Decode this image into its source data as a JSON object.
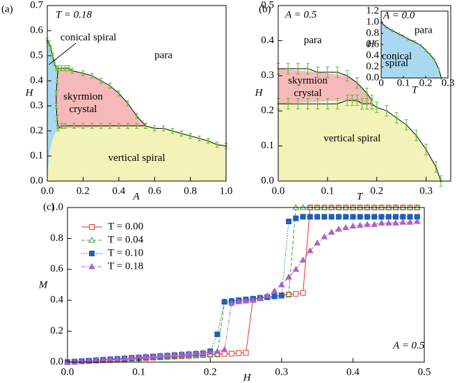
{
  "chart_data": [
    {
      "type": "phase",
      "panel": "(a)",
      "annotation": "T = 0.18",
      "xlabel": "A",
      "ylabel": "H",
      "xlim": [
        0,
        1
      ],
      "ylim": [
        0,
        0.7
      ],
      "xticks": [
        {
          "value": 0,
          "label": "0.0"
        },
        0.2,
        0.4,
        0.6,
        0.8,
        {
          "value": 1,
          "label": "1.0"
        }
      ],
      "yticks": [
        {
          "value": 0,
          "label": "0.0"
        },
        0.1,
        0.2,
        0.3,
        0.4,
        0.5,
        0.6,
        0.7
      ],
      "regions": [
        {
          "label": [
            "vertical spiral"
          ],
          "color": "#f3f2b8",
          "x": [
            0,
            0.01,
            0.02,
            0.03,
            0.05,
            0.06,
            0.55,
            0.6,
            0.7,
            0.8,
            0.9,
            1,
            1,
            0
          ],
          "y": [
            0,
            0.1,
            0.14,
            0.17,
            0.2,
            0.21,
            0.22,
            0.21,
            0.2,
            0.18,
            0.16,
            0.14,
            0,
            0
          ]
        },
        {
          "label": [
            "skyrmion",
            "crystal"
          ],
          "color": "#f6b9b9",
          "x": [
            0.06,
            0.055,
            0.05,
            0.05,
            0.055,
            0.06,
            0.1,
            0.2,
            0.3,
            0.4,
            0.5,
            0.55
          ],
          "y": [
            0.21,
            0.25,
            0.3,
            0.35,
            0.4,
            0.45,
            0.45,
            0.43,
            0.4,
            0.35,
            0.26,
            0.22
          ]
        },
        {
          "label": [
            "conical spiral"
          ],
          "color": "#a9d9f1",
          "x": [
            0,
            0.01,
            0.02,
            0.03,
            0.04,
            0.05,
            0.06,
            0.055,
            0.05,
            0.05,
            0.055,
            0.06,
            0.05,
            0.03,
            0.02,
            0.01,
            0
          ],
          "y": [
            0.56,
            0.55,
            0.53,
            0.5,
            0.47,
            0.45,
            0.45,
            0.4,
            0.35,
            0.3,
            0.25,
            0.21,
            0.2,
            0.17,
            0.14,
            0.1,
            0
          ]
        },
        {
          "label": [
            "para"
          ],
          "color": "#ffffff",
          "x": [],
          "y": []
        }
      ],
      "boundaries": [
        {
          "x": [
            0.06,
            0.08,
            0.1,
            0.12,
            0.14,
            0.2,
            0.25,
            0.3,
            0.35,
            0.4,
            0.45,
            0.5,
            0.55
          ],
          "y": [
            0.45,
            0.45,
            0.45,
            0.45,
            0.44,
            0.43,
            0.42,
            0.4,
            0.38,
            0.35,
            0.31,
            0.26,
            0.22
          ],
          "yerr": 0.01
        },
        {
          "x": [
            0.06,
            0.08,
            0.1,
            0.15,
            0.2,
            0.25,
            0.3,
            0.35,
            0.4,
            0.45,
            0.5,
            0.55,
            0.6,
            0.65,
            0.7,
            0.75,
            0.8,
            0.85,
            0.9,
            0.95,
            1
          ],
          "y": [
            0.21,
            0.22,
            0.22,
            0.22,
            0.22,
            0.22,
            0.22,
            0.22,
            0.22,
            0.22,
            0.22,
            0.22,
            0.21,
            0.21,
            0.2,
            0.19,
            0.18,
            0.17,
            0.16,
            0.145,
            0.14
          ],
          "yerr": 0.01
        },
        {
          "x": [
            0,
            0.01,
            0.02,
            0.03,
            0.04,
            0.05,
            0.06,
            0.055,
            0.05,
            0.05,
            0.055,
            0.06
          ],
          "y": [
            0.56,
            0.55,
            0.53,
            0.5,
            0.47,
            0.45,
            0.45,
            0.4,
            0.35,
            0.3,
            0.25,
            0.21
          ],
          "yerr": 0.01
        }
      ],
      "boundary_color": "#5cb82e"
    },
    {
      "type": "phase",
      "panel": "(b)",
      "annotation": "A = 0.5",
      "xlabel": "T",
      "ylabel": "H",
      "xlim": [
        0,
        0.35
      ],
      "ylim": [
        0,
        0.5
      ],
      "xticks": [
        {
          "value": 0,
          "label": "0.0"
        },
        0.1,
        0.2,
        0.3
      ],
      "yticks": [
        {
          "value": 0,
          "label": "0.0"
        },
        0.1,
        0.2,
        0.3,
        0.4,
        0.5
      ],
      "regions": [
        {
          "label": [
            "vertical spiral"
          ],
          "color": "#f3f2b8",
          "x": [
            0,
            0.1,
            0.14,
            0.17,
            0.2,
            0.24,
            0.28,
            0.32,
            0.33,
            0
          ],
          "y": [
            0.22,
            0.22,
            0.23,
            0.22,
            0.21,
            0.18,
            0.13,
            0.04,
            0,
            0
          ]
        },
        {
          "label": [
            "skyrmion",
            "crystal"
          ],
          "color": "#f6b9b9",
          "x": [
            0,
            0.08,
            0.14,
            0.16,
            0.18,
            0.19,
            0.19,
            0.17,
            0.14,
            0
          ],
          "y": [
            0.32,
            0.31,
            0.3,
            0.28,
            0.25,
            0.23,
            0.22,
            0.22,
            0.23,
            0.22
          ]
        },
        {
          "label": [
            "para"
          ],
          "color": "#ffffff",
          "x": [],
          "y": []
        }
      ],
      "boundaries": [
        {
          "x": [
            0,
            0.02,
            0.04,
            0.06,
            0.08,
            0.1,
            0.12,
            0.14,
            0.16,
            0.18,
            0.19
          ],
          "y": [
            0.32,
            0.32,
            0.32,
            0.32,
            0.31,
            0.31,
            0.31,
            0.3,
            0.28,
            0.25,
            0.23
          ],
          "yerr": 0.015
        },
        {
          "x": [
            0,
            0.02,
            0.04,
            0.06,
            0.08,
            0.1,
            0.12,
            0.14,
            0.15,
            0.16,
            0.17,
            0.18,
            0.19,
            0.2,
            0.22,
            0.24,
            0.26,
            0.28,
            0.3,
            0.32,
            0.33
          ],
          "y": [
            0.22,
            0.22,
            0.22,
            0.22,
            0.22,
            0.22,
            0.22,
            0.23,
            0.23,
            0.23,
            0.22,
            0.22,
            0.22,
            0.21,
            0.2,
            0.18,
            0.16,
            0.13,
            0.09,
            0.04,
            0
          ],
          "yerr": 0.015
        }
      ],
      "boundary_color": "#5cb82e"
    },
    {
      "type": "phase",
      "inset": true,
      "annotation": "A = 0.0",
      "xlabel": "T",
      "ylabel": "H",
      "xlim": [
        0,
        0.3
      ],
      "ylim": [
        0,
        1.2
      ],
      "xticks": [
        0,
        0.1,
        0.2,
        0.3
      ],
      "yticks": [
        {
          "value": 0,
          "label": "0.0"
        },
        0.2,
        0.4,
        0.6,
        0.8,
        {
          "value": 1,
          "label": "1.0"
        },
        1.2
      ],
      "regions": [
        {
          "label": [
            "conical",
            "spiral"
          ],
          "color": "#a9d9f1",
          "x": [
            0,
            0.05,
            0.1,
            0.15,
            0.2,
            0.24,
            0.27,
            0
          ],
          "y": [
            1,
            0.85,
            0.75,
            0.65,
            0.5,
            0.32,
            0,
            0
          ]
        },
        {
          "label": [
            "para"
          ],
          "color": "#ffffff",
          "x": [],
          "y": []
        }
      ],
      "boundaries": [
        {
          "x": [
            0,
            0.02,
            0.05,
            0.08,
            0.1,
            0.12,
            0.15,
            0.18,
            0.2,
            0.22,
            0.24,
            0.26,
            0.27
          ],
          "y": [
            1,
            0.92,
            0.85,
            0.79,
            0.75,
            0.7,
            0.65,
            0.58,
            0.5,
            0.42,
            0.32,
            0.15,
            0
          ],
          "yerr": 0.02
        }
      ],
      "boundary_color": "#5cb82e"
    },
    {
      "type": "line",
      "panel": "(c)",
      "annotation": "A = 0.5",
      "xlabel": "H",
      "ylabel": "M",
      "xlim": [
        0,
        0.5
      ],
      "ylim": [
        0,
        1
      ],
      "xticks": [
        {
          "value": 0,
          "label": "0.0"
        },
        0.1,
        0.2,
        0.3,
        0.4,
        0.5
      ],
      "yticks": [
        {
          "value": 0,
          "label": "0.0"
        },
        0.2,
        0.4,
        0.6,
        0.8,
        {
          "value": 1,
          "label": "1.0"
        }
      ],
      "x": [
        0,
        0.01,
        0.02,
        0.03,
        0.04,
        0.05,
        0.06,
        0.07,
        0.08,
        0.09,
        0.1,
        0.11,
        0.12,
        0.13,
        0.14,
        0.15,
        0.16,
        0.17,
        0.18,
        0.19,
        0.2,
        0.21,
        0.22,
        0.23,
        0.24,
        0.25,
        0.26,
        0.27,
        0.28,
        0.29,
        0.3,
        0.31,
        0.32,
        0.33,
        0.34,
        0.35,
        0.36,
        0.37,
        0.38,
        0.39,
        0.4,
        0.41,
        0.42,
        0.43,
        0.44,
        0.45,
        0.46,
        0.47,
        0.48,
        0.49
      ],
      "series": [
        {
          "name": "T = 0.00",
          "color": "#e8322a",
          "marker": "square",
          "filled": false,
          "linestyle": "solid",
          "values": [
            0,
            0.002,
            0.005,
            0.007,
            0.01,
            0.012,
            0.014,
            0.017,
            0.019,
            0.022,
            0.024,
            0.026,
            0.029,
            0.031,
            0.034,
            0.036,
            0.038,
            0.041,
            0.043,
            0.046,
            0.048,
            0.05,
            0.053,
            0.055,
            0.058,
            0.06,
            0.41,
            0.416,
            0.421,
            0.426,
            0.432,
            0.437,
            0.442,
            0.448,
            1,
            1,
            1,
            1,
            1,
            1,
            1,
            1,
            1,
            1,
            1,
            1,
            1,
            1,
            1,
            1
          ]
        },
        {
          "name": "T = 0.04",
          "color": "#3aa02a",
          "marker": "triangle",
          "filled": false,
          "linestyle": "dashed",
          "values": [
            0,
            0.003,
            0.005,
            0.008,
            0.01,
            0.013,
            0.015,
            0.018,
            0.02,
            0.023,
            0.025,
            0.028,
            0.03,
            0.033,
            0.035,
            0.038,
            0.04,
            0.043,
            0.045,
            0.048,
            0.05,
            0.053,
            0.39,
            0.395,
            0.4,
            0.405,
            0.41,
            0.415,
            0.42,
            0.425,
            0.43,
            0.44,
            1,
            1,
            1,
            1,
            1,
            1,
            1,
            1,
            1,
            1,
            1,
            1,
            1,
            1,
            1,
            1,
            1,
            1
          ]
        },
        {
          "name": "T = 0.10",
          "color": "#1f5fb5",
          "marker": "square",
          "filled": true,
          "linestyle": "dotted",
          "values": [
            0,
            0.003,
            0.006,
            0.009,
            0.012,
            0.015,
            0.018,
            0.021,
            0.024,
            0.027,
            0.03,
            0.033,
            0.036,
            0.039,
            0.042,
            0.045,
            0.048,
            0.051,
            0.054,
            0.057,
            0.07,
            0.18,
            0.39,
            0.395,
            0.4,
            0.405,
            0.41,
            0.415,
            0.42,
            0.425,
            0.43,
            0.91,
            0.93,
            0.94,
            0.94,
            0.94,
            0.94,
            0.94,
            0.94,
            0.94,
            0.94,
            0.94,
            0.94,
            0.94,
            0.94,
            0.94,
            0.94,
            0.94,
            0.94,
            0.94
          ]
        },
        {
          "name": "T = 0.18",
          "color": "#b05fc8",
          "marker": "triangle",
          "filled": true,
          "linestyle": "dashdot",
          "values": [
            0,
            0.003,
            0.006,
            0.01,
            0.013,
            0.016,
            0.019,
            0.022,
            0.026,
            0.029,
            0.032,
            0.035,
            0.038,
            0.042,
            0.045,
            0.048,
            0.051,
            0.054,
            0.058,
            0.061,
            0.064,
            0.07,
            0.08,
            0.38,
            0.39,
            0.395,
            0.4,
            0.41,
            0.43,
            0.46,
            0.5,
            0.55,
            0.6,
            0.66,
            0.72,
            0.77,
            0.81,
            0.84,
            0.86,
            0.87,
            0.88,
            0.885,
            0.89,
            0.89,
            0.9,
            0.9,
            0.9,
            0.905,
            0.905,
            0.91
          ]
        }
      ]
    }
  ]
}
